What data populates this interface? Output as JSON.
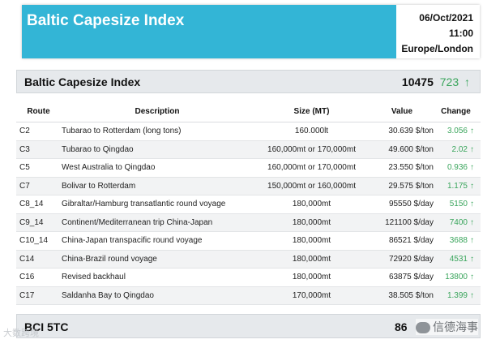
{
  "header": {
    "title": "Baltic Capesize Index",
    "date": "06/Oct/2021",
    "time": "11:00",
    "timezone": "Europe/London",
    "band_color": "#33b5d6"
  },
  "index": {
    "name": "Baltic Capesize Index",
    "value": "10475",
    "change": "723",
    "arrow": "↑",
    "up_color": "#3aa55c"
  },
  "table": {
    "columns": [
      "Route",
      "Description",
      "Size (MT)",
      "Value",
      "Change"
    ],
    "rows": [
      {
        "route": "C2",
        "description": "Tubarao to Rotterdam (long tons)",
        "size": "160.000lt",
        "value": "30.639 $/ton",
        "change": "3.056",
        "arrow": "↑"
      },
      {
        "route": "C3",
        "description": "Tubarao to Qingdao",
        "size": "160,000mt or 170,000mt",
        "value": "49.600 $/ton",
        "change": "2.02",
        "arrow": "↑"
      },
      {
        "route": "C5",
        "description": "West Australia to Qingdao",
        "size": "160,000mt or 170,000mt",
        "value": "23.550 $/ton",
        "change": "0.936",
        "arrow": "↑"
      },
      {
        "route": "C7",
        "description": "Bolivar to Rotterdam",
        "size": "150,000mt or 160,000mt",
        "value": "29.575 $/ton",
        "change": "1.175",
        "arrow": "↑"
      },
      {
        "route": "C8_14",
        "description": "Gibraltar/Hamburg transatlantic round voyage",
        "size": "180,000mt",
        "value": "95550 $/day",
        "change": "5150",
        "arrow": "↑"
      },
      {
        "route": "C9_14",
        "description": "Continent/Mediterranean trip China-Japan",
        "size": "180,000mt",
        "value": "121100 $/day",
        "change": "7400",
        "arrow": "↑"
      },
      {
        "route": "C10_14",
        "description": "China-Japan transpacific round voyage",
        "size": "180,000mt",
        "value": "86521 $/day",
        "change": "3688",
        "arrow": "↑"
      },
      {
        "route": "C14",
        "description": "China-Brazil round voyage",
        "size": "180,000mt",
        "value": "72920 $/day",
        "change": "4531",
        "arrow": "↑"
      },
      {
        "route": "C16",
        "description": "Revised backhaul",
        "size": "180,000mt",
        "value": "63875 $/day",
        "change": "13800",
        "arrow": "↑"
      },
      {
        "route": "C17",
        "description": "Saldanha Bay to Qingdao",
        "size": "170,000mt",
        "value": "38.505 $/ton",
        "change": "1.399",
        "arrow": "↑"
      }
    ]
  },
  "bottom": {
    "name": "BCI 5TC",
    "value": "86"
  },
  "watermarks": {
    "left": "大数跨境",
    "right": "信德海事"
  }
}
